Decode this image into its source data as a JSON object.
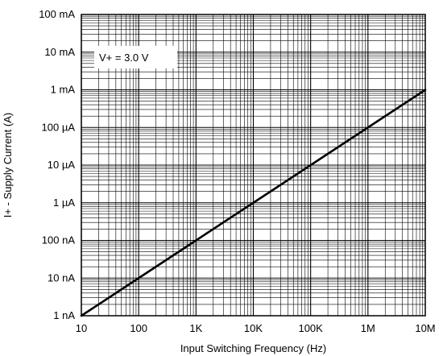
{
  "chart_data": {
    "type": "line",
    "title": "",
    "xlabel": "Input Switching Frequency (Hz)",
    "ylabel": "I+ -  Supply Current (A)",
    "x_scale": "log",
    "y_scale": "log",
    "xlim": [
      10,
      10000000
    ],
    "ylim": [
      1e-09,
      0.1
    ],
    "grid": true,
    "x_ticks": [
      {
        "value": 10,
        "label": "10"
      },
      {
        "value": 100,
        "label": "100"
      },
      {
        "value": 1000,
        "label": "1K"
      },
      {
        "value": 10000,
        "label": "10K"
      },
      {
        "value": 100000,
        "label": "100K"
      },
      {
        "value": 1000000,
        "label": "1M"
      },
      {
        "value": 10000000,
        "label": "10M"
      }
    ],
    "y_ticks": [
      {
        "value": 1e-09,
        "label": "1 nA"
      },
      {
        "value": 1e-08,
        "label": "10 nA"
      },
      {
        "value": 1e-07,
        "label": "100 nA"
      },
      {
        "value": 1e-06,
        "label": "1 µA"
      },
      {
        "value": 1e-05,
        "label": "10 µA"
      },
      {
        "value": 0.0001,
        "label": "100 µA"
      },
      {
        "value": 0.001,
        "label": "1 mA"
      },
      {
        "value": 0.01,
        "label": "10 mA"
      },
      {
        "value": 0.1,
        "label": "100 mA"
      }
    ],
    "annotation": "V+ = 3.0 V",
    "series": [
      {
        "x": [
          10,
          100,
          1000,
          10000,
          100000,
          1000000,
          10000000
        ],
        "y": [
          1e-09,
          1e-08,
          1e-07,
          1e-06,
          1e-05,
          0.0001,
          0.001
        ]
      }
    ],
    "colors": {
      "line": "#000000",
      "grid": "#000000",
      "background": "#ffffff"
    }
  }
}
